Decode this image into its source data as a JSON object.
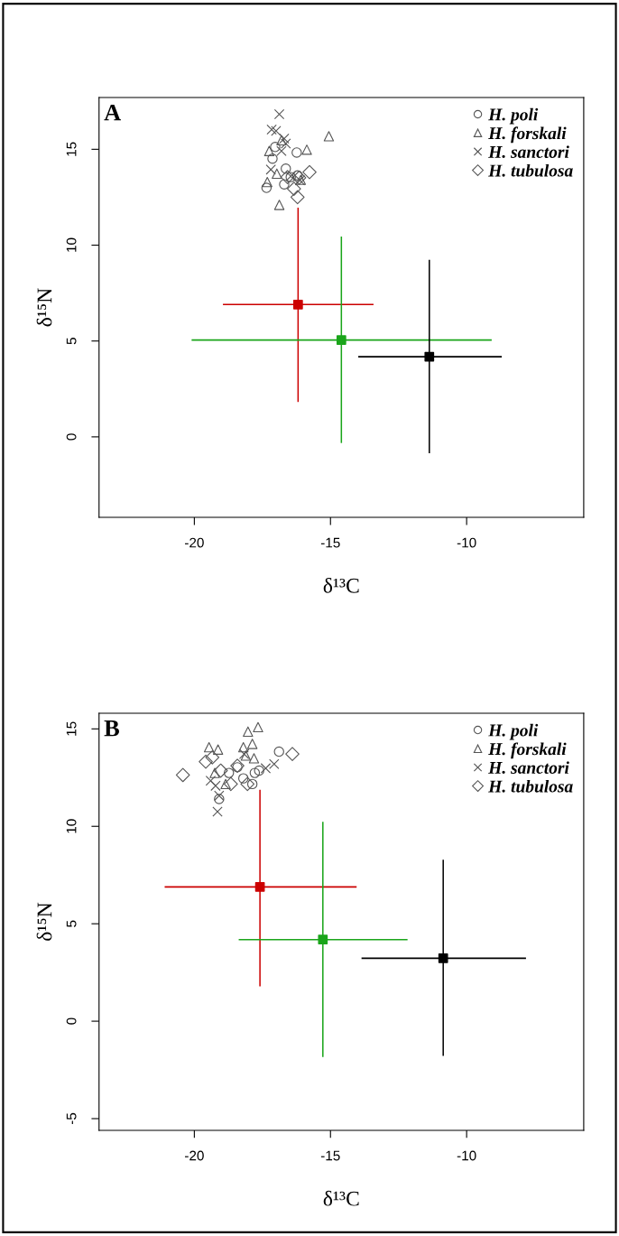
{
  "chart_data": [
    {
      "type": "scatter",
      "xlabel": "δ¹³C",
      "ylabel": "δ¹⁵N",
      "annotations": [
        "A"
      ],
      "xlim": [
        -23.5,
        -5.7
      ],
      "ylim": [
        -4.2,
        17.7
      ],
      "xticks": [
        -20,
        -15,
        -10
      ],
      "yticks": [
        0,
        5,
        10,
        15
      ],
      "legend": "top right",
      "grid": false,
      "series": [
        {
          "name": "H. poli",
          "color": "#555555",
          "marker": "circle",
          "x": [
            -16.24,
            -17.03,
            -17.13,
            -16.64,
            -16.46,
            -16.21,
            -16.7,
            -17.35
          ],
          "values": [
            14.83,
            15.12,
            14.51,
            13.99,
            13.55,
            13.64,
            13.17,
            12.99
          ]
        },
        {
          "name": "H. forskali",
          "color": "#555555",
          "marker": "triangle",
          "x": [
            -15.06,
            -15.87,
            -17.25,
            -16.8,
            -16.97,
            -17.32,
            -16.09,
            -16.88
          ],
          "values": [
            15.68,
            14.98,
            14.91,
            15.47,
            13.73,
            13.29,
            13.41,
            12.1
          ]
        },
        {
          "name": "H. sanctori",
          "color": "#555555",
          "marker": "cross",
          "x": [
            -16.88,
            -17.16,
            -17.0,
            -16.7,
            -16.64,
            -16.8,
            -17.19,
            -16.46,
            -16.12
          ],
          "values": [
            16.83,
            16.03,
            15.96,
            15.56,
            15.3,
            14.91,
            13.94,
            13.59,
            13.38
          ]
        },
        {
          "name": "H. tubulosa",
          "color": "#555555",
          "marker": "diamond",
          "x": [
            -15.77,
            -16.58,
            -16.15,
            -16.34,
            -16.21
          ],
          "values": [
            13.81,
            13.55,
            13.52,
            12.94,
            12.5
          ]
        },
        {
          "color": "#cc0000",
          "marker": "square",
          "x": [
            -16.19
          ],
          "values": [
            6.9
          ],
          "xerrors": [
            [
              -18.95,
              -13.42
            ]
          ],
          "errors": [
            [
              1.82,
              11.95
            ]
          ]
        },
        {
          "color": "#1aa51a",
          "marker": "square",
          "x": [
            -14.6
          ],
          "values": [
            5.05
          ],
          "xerrors": [
            [
              -20.1,
              -9.08
            ]
          ],
          "errors": [
            [
              -0.32,
              10.45
            ]
          ]
        },
        {
          "color": "#000000",
          "marker": "square",
          "x": [
            -11.37
          ],
          "values": [
            4.18
          ],
          "xerrors": [
            [
              -13.98,
              -8.71
            ]
          ],
          "errors": [
            [
              -0.85,
              9.24
            ]
          ]
        }
      ]
    },
    {
      "type": "scatter",
      "xlabel": "δ¹³C",
      "ylabel": "δ¹⁵N",
      "annotations": [
        "B"
      ],
      "xlim": [
        -23.5,
        -5.7
      ],
      "ylim": [
        -5.6,
        15.8
      ],
      "xticks": [
        -20,
        -15,
        -10
      ],
      "yticks": [
        -5,
        0,
        5,
        10,
        15
      ],
      "legend": "top right",
      "grid": false,
      "series": [
        {
          "name": "H. poli",
          "color": "#555555",
          "marker": "circle",
          "x": [
            -16.89,
            -17.62,
            -17.78,
            -18.2,
            -17.87,
            -18.73,
            -18.42,
            -19.09
          ],
          "values": [
            13.83,
            12.86,
            12.74,
            12.46,
            12.17,
            12.74,
            13.03,
            11.4
          ]
        },
        {
          "name": "H. forskali",
          "color": "#555555",
          "marker": "triangle",
          "x": [
            -17.66,
            -18.03,
            -19.46,
            -19.13,
            -18.2,
            -17.87,
            -17.81,
            -18.11,
            -19.25,
            -18.85
          ],
          "values": [
            15.09,
            14.86,
            14.06,
            13.94,
            14.06,
            14.23,
            13.49,
            13.63,
            12.74,
            12.17
          ]
        },
        {
          "name": "H. sanctori",
          "color": "#555555",
          "marker": "cross",
          "x": [
            -17.07,
            -17.38,
            -18.17,
            -19.4,
            -19.22,
            -19.09,
            -19.15
          ],
          "values": [
            13.2,
            12.98,
            13.71,
            12.34,
            12.08,
            11.57,
            10.75
          ]
        },
        {
          "name": "H. tubulosa",
          "color": "#555555",
          "marker": "diamond",
          "x": [
            -20.42,
            -16.4,
            -19.58,
            -19.34,
            -19.03,
            -18.66,
            -18.05,
            -18.42
          ],
          "values": [
            12.63,
            13.71,
            13.32,
            13.54,
            12.86,
            12.17,
            12.17,
            13.11
          ]
        },
        {
          "color": "#cc0000",
          "marker": "square",
          "x": [
            -17.59
          ],
          "values": [
            6.89
          ],
          "xerrors": [
            [
              -21.09,
              -14.04
            ]
          ],
          "errors": [
            [
              1.79,
              11.88
            ]
          ]
        },
        {
          "color": "#1aa51a",
          "marker": "square",
          "x": [
            -15.28
          ],
          "values": [
            4.19
          ],
          "xerrors": [
            [
              -18.37,
              -12.17
            ]
          ],
          "errors": [
            [
              -1.84,
              10.23
            ]
          ]
        },
        {
          "color": "#000000",
          "marker": "square",
          "x": [
            -10.86
          ],
          "values": [
            3.23
          ],
          "xerrors": [
            [
              -13.86,
              -7.82
            ]
          ],
          "errors": [
            [
              -1.78,
              8.28
            ]
          ]
        }
      ]
    }
  ]
}
